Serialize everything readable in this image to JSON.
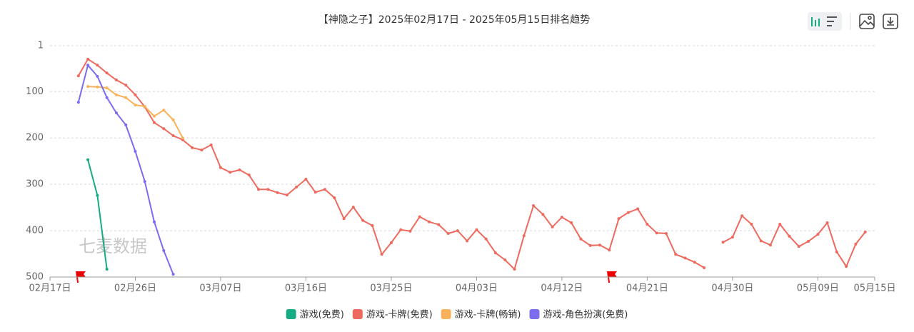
{
  "chart_data": {
    "type": "line",
    "title": "【神隐之子】2025年02月17日 - 2025年05月15日排名趋势",
    "watermark": "七麦数据",
    "categories": [
      "02月17日",
      null,
      null,
      null,
      null,
      null,
      null,
      null,
      null,
      "02月26日",
      null,
      null,
      null,
      null,
      null,
      null,
      null,
      null,
      "03月07日",
      null,
      null,
      null,
      null,
      null,
      null,
      null,
      null,
      "03月16日",
      null,
      null,
      null,
      null,
      null,
      null,
      null,
      null,
      "03月25日",
      null,
      null,
      null,
      null,
      null,
      null,
      null,
      null,
      "04月03日",
      null,
      null,
      null,
      null,
      null,
      null,
      null,
      null,
      "04月12日",
      null,
      null,
      null,
      null,
      null,
      null,
      null,
      null,
      "04月21日",
      null,
      null,
      null,
      null,
      null,
      null,
      null,
      null,
      "04月30日",
      null,
      null,
      null,
      null,
      null,
      null,
      null,
      null,
      "05月09日",
      null,
      null,
      null,
      null,
      null,
      "05月15日"
    ],
    "ylim": [
      1,
      500
    ],
    "yticks": [
      1,
      100,
      200,
      300,
      400,
      500
    ],
    "inverted": true,
    "grid": true,
    "series": [
      {
        "name": "游戏(免费)",
        "color": "#15ab83",
        "values": [
          null,
          null,
          null,
          null,
          247,
          324,
          483,
          null,
          null,
          null,
          null,
          null,
          null,
          null,
          null,
          null,
          null,
          null,
          null,
          null,
          null,
          null,
          null,
          null,
          null,
          null,
          null,
          null,
          null,
          null,
          null,
          null,
          null,
          null,
          null,
          null,
          null,
          null,
          null,
          null,
          null,
          null,
          null,
          null,
          null,
          null,
          null,
          null,
          null,
          null,
          null,
          null,
          null,
          null,
          null,
          null,
          null,
          null,
          null,
          null,
          null,
          null,
          null,
          null,
          null,
          null,
          null,
          null,
          null,
          null,
          null,
          null,
          null,
          null,
          null,
          null,
          null,
          null,
          null,
          null,
          null,
          null,
          null,
          null,
          null,
          null,
          null,
          null
        ]
      },
      {
        "name": "游戏-卡牌(免费)",
        "color": "#ee6a5f",
        "values": [
          null,
          null,
          null,
          66,
          30,
          43,
          60,
          75,
          86,
          107,
          133,
          167,
          180,
          195,
          204,
          221,
          226,
          215,
          264,
          274,
          269,
          280,
          311,
          311,
          318,
          323,
          306,
          289,
          317,
          311,
          329,
          374,
          349,
          378,
          389,
          451,
          426,
          398,
          401,
          370,
          381,
          387,
          406,
          400,
          422,
          398,
          418,
          448,
          463,
          483,
          411,
          346,
          365,
          392,
          371,
          383,
          418,
          432,
          431,
          442,
          374,
          361,
          353,
          386,
          405,
          406,
          451,
          459,
          468,
          480,
          null,
          425,
          414,
          368,
          386,
          422,
          431,
          386,
          412,
          434,
          423,
          408,
          383,
          446,
          477,
          429,
          403,
          null
        ]
      },
      {
        "name": "游戏-卡牌(畅销)",
        "color": "#f9b25b",
        "values": [
          null,
          null,
          null,
          null,
          89,
          90,
          92,
          107,
          113,
          129,
          132,
          153,
          140,
          161,
          200,
          null,
          null,
          null,
          null,
          null,
          null,
          null,
          null,
          null,
          null,
          null,
          null,
          null,
          null,
          null,
          null,
          null,
          null,
          null,
          null,
          null,
          null,
          null,
          null,
          null,
          null,
          null,
          null,
          null,
          null,
          null,
          null,
          null,
          null,
          null,
          null,
          null,
          null,
          null,
          null,
          null,
          null,
          null,
          null,
          null,
          null,
          null,
          null,
          null,
          null,
          null,
          null,
          null,
          null,
          null,
          null,
          null,
          null,
          null,
          null,
          null,
          null,
          null,
          null,
          null,
          null,
          null,
          null,
          null,
          null,
          null,
          null,
          null
        ]
      },
      {
        "name": "游戏-角色扮演(免费)",
        "color": "#7b6cf0",
        "values": [
          null,
          null,
          null,
          123,
          43,
          67,
          113,
          146,
          172,
          229,
          294,
          381,
          443,
          494,
          null,
          null,
          null,
          null,
          null,
          null,
          null,
          null,
          null,
          null,
          null,
          null,
          null,
          null,
          null,
          null,
          null,
          null,
          null,
          null,
          null,
          null,
          null,
          null,
          null,
          null,
          null,
          null,
          null,
          null,
          null,
          null,
          null,
          null,
          null,
          null,
          null,
          null,
          null,
          null,
          null,
          null,
          null,
          null,
          null,
          null,
          null,
          null,
          null,
          null,
          null,
          null,
          null,
          null,
          null,
          null,
          null,
          null,
          null,
          null,
          null,
          null,
          null,
          null,
          null,
          null,
          null,
          null,
          null,
          null,
          null,
          null,
          null,
          null
        ]
      }
    ]
  }
}
